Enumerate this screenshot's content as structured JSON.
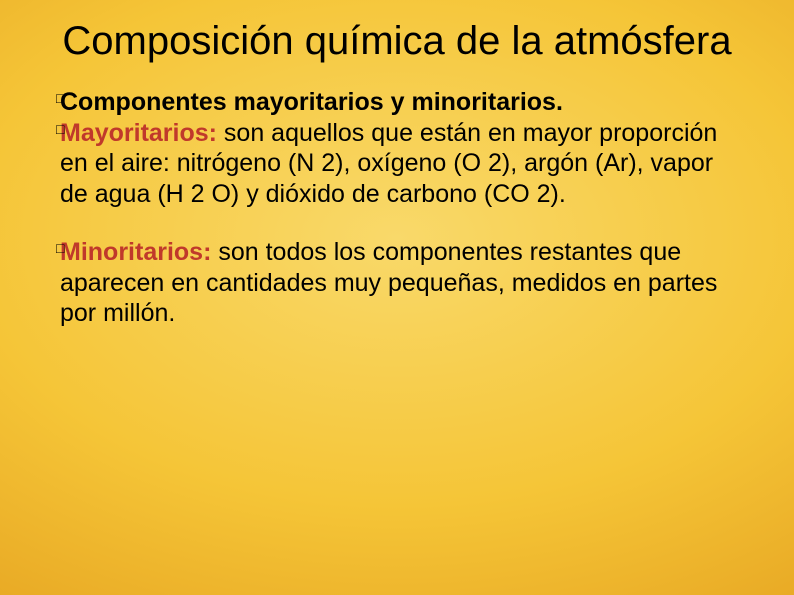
{
  "title": "Composición química de la atmósfera",
  "p1": {
    "bullet1": "Componentes mayoritarios y minoritarios.",
    "bullet2_label": "Mayoritarios:",
    "bullet2_rest": " son aquellos que están en mayor proporción en el aire: nitrógeno (N 2), oxígeno (O 2), argón (Ar), vapor de agua (H 2 O) y dióxido de carbono (CO 2)."
  },
  "p2": {
    "bullet_label": "Minoritarios:",
    "bullet_rest": " son todos los componentes restantes que aparecen en cantidades muy pequeñas, medidos en partes por millón."
  },
  "bullet_glyph": "□"
}
